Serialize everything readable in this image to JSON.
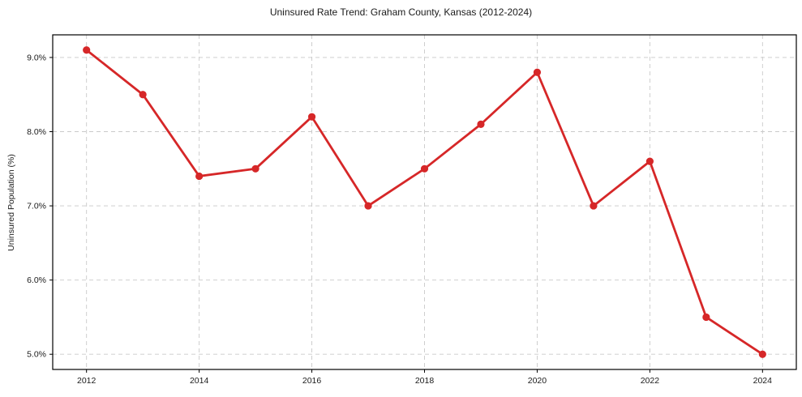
{
  "figure": {
    "title": "Uninsured Rate Trend: Graham County, Kansas (2012-2024)",
    "y_axis_label": "Uninsured Population (%)"
  },
  "chart_data": {
    "type": "line",
    "title": "Uninsured Rate Trend: Graham County, Kansas (2012-2024)",
    "xlabel": "",
    "ylabel": "Uninsured Population (%)",
    "x": [
      2012,
      2013,
      2014,
      2015,
      2016,
      2017,
      2018,
      2019,
      2020,
      2021,
      2022,
      2023,
      2024
    ],
    "y": [
      9.1,
      8.5,
      7.4,
      7.5,
      8.2,
      7.0,
      7.5,
      8.1,
      8.8,
      7.0,
      7.6,
      5.5,
      5.0
    ],
    "x_tick_values": [
      2012,
      2014,
      2016,
      2018,
      2020,
      2022,
      2024
    ],
    "x_tick_labels": [
      "2012",
      "2014",
      "2016",
      "2018",
      "2020",
      "2022",
      "2024"
    ],
    "y_tick_values": [
      5.0,
      6.0,
      7.0,
      8.0,
      9.0
    ],
    "y_tick_labels": [
      "5.0%",
      "6.0%",
      "7.0%",
      "8.0%",
      "9.0%"
    ],
    "xlim": [
      2011.4,
      2024.6
    ],
    "ylim": [
      4.795,
      9.305
    ],
    "grid": true,
    "legend_position": "none",
    "line_color": "#d62728",
    "marker": "circle",
    "grid_color": "#c9c9c9",
    "axis_color": "#000000",
    "text_color": "#1a1a1a",
    "background_color": "#ffffff"
  }
}
